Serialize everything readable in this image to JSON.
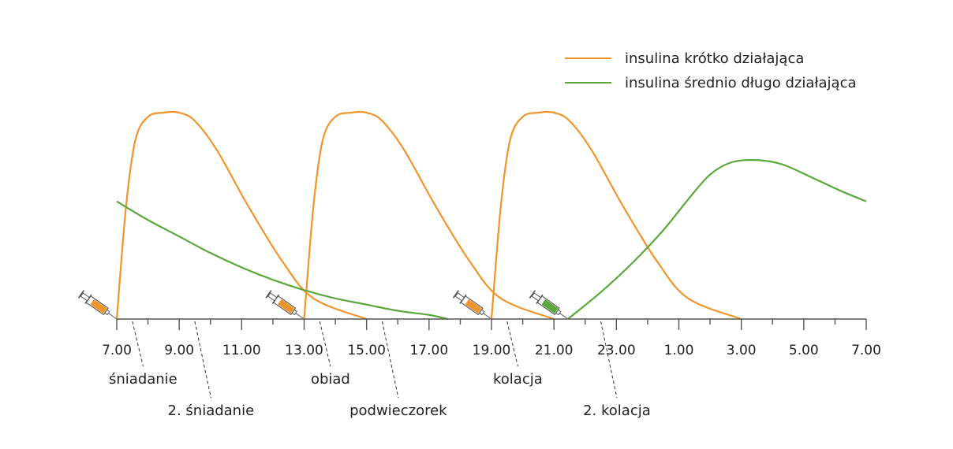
{
  "chart_data": {
    "type": "line",
    "title": "",
    "xlabel": "",
    "ylabel": "",
    "x_unit": "hour of day (continuous, 7.00 to next day 7.00)",
    "xlim": [
      7,
      31
    ],
    "ylim": [
      0,
      1
    ],
    "grid": false,
    "legend_position": "top-right",
    "colors": {
      "short": "#f0952b",
      "intermediate": "#5aa83c",
      "axis": "#555555"
    },
    "tick_labels": [
      {
        "x": 7,
        "label": "7.00"
      },
      {
        "x": 9,
        "label": "9.00"
      },
      {
        "x": 11,
        "label": "11.00"
      },
      {
        "x": 13,
        "label": "13.00"
      },
      {
        "x": 15,
        "label": "15.00"
      },
      {
        "x": 17,
        "label": "17.00"
      },
      {
        "x": 19,
        "label": "19.00"
      },
      {
        "x": 21,
        "label": "21.00"
      },
      {
        "x": 23,
        "label": "23.00"
      },
      {
        "x": 25,
        "label": "1.00"
      },
      {
        "x": 27,
        "label": "3.00"
      },
      {
        "x": 29,
        "label": "5.00"
      },
      {
        "x": 31,
        "label": "7.00"
      }
    ],
    "minor_ticks": [
      8,
      10,
      12,
      14,
      16,
      18,
      20,
      22,
      24,
      26,
      28,
      30
    ],
    "legend": [
      {
        "name": "insulina krótko działająca",
        "color": "#f0952b"
      },
      {
        "name": "insulina średnio długo działająca",
        "color": "#5aa83c"
      }
    ],
    "series": [
      {
        "name": "insulina krótko działająca",
        "color": "#f0952b",
        "points": [
          [
            7,
            0
          ],
          [
            7.3,
            0.55
          ],
          [
            7.6,
            0.87
          ],
          [
            8.0,
            0.98
          ],
          [
            8.5,
            1.0
          ],
          [
            9.0,
            1.0
          ],
          [
            9.5,
            0.96
          ],
          [
            10.2,
            0.82
          ],
          [
            11.2,
            0.55
          ],
          [
            12.3,
            0.28
          ],
          [
            13.3,
            0.1
          ],
          [
            15,
            0
          ]
        ]
      },
      {
        "name": "insulina krótko działająca",
        "color": "#f0952b",
        "points": [
          [
            13,
            0
          ],
          [
            13.3,
            0.55
          ],
          [
            13.6,
            0.87
          ],
          [
            14.0,
            0.98
          ],
          [
            14.5,
            1.0
          ],
          [
            15.0,
            1.0
          ],
          [
            15.5,
            0.96
          ],
          [
            16.2,
            0.82
          ],
          [
            17.2,
            0.55
          ],
          [
            18.3,
            0.28
          ],
          [
            19.3,
            0.1
          ],
          [
            21,
            0
          ]
        ]
      },
      {
        "name": "insulina krótko działająca",
        "color": "#f0952b",
        "points": [
          [
            19,
            0
          ],
          [
            19.3,
            0.55
          ],
          [
            19.6,
            0.87
          ],
          [
            20.0,
            0.98
          ],
          [
            20.5,
            1.0
          ],
          [
            21.0,
            1.0
          ],
          [
            21.5,
            0.96
          ],
          [
            22.2,
            0.82
          ],
          [
            23.2,
            0.55
          ],
          [
            24.3,
            0.28
          ],
          [
            25.3,
            0.1
          ],
          [
            27,
            0
          ]
        ]
      },
      {
        "name": "insulina średnio długo działająca",
        "color": "#5aa83c",
        "points": [
          [
            7,
            0.57
          ],
          [
            8,
            0.48
          ],
          [
            9,
            0.4
          ],
          [
            10,
            0.32
          ],
          [
            11,
            0.25
          ],
          [
            12,
            0.19
          ],
          [
            13,
            0.14
          ],
          [
            14,
            0.1
          ],
          [
            15,
            0.07
          ],
          [
            16,
            0.04
          ],
          [
            17,
            0.02
          ],
          [
            17.6,
            0.0
          ]
        ]
      },
      {
        "name": "insulina średnio długo działająca",
        "color": "#5aa83c",
        "points": [
          [
            21.45,
            0
          ],
          [
            22.5,
            0.13
          ],
          [
            23.5,
            0.27
          ],
          [
            24.5,
            0.43
          ],
          [
            25.3,
            0.58
          ],
          [
            26.0,
            0.7
          ],
          [
            26.7,
            0.76
          ],
          [
            27.5,
            0.77
          ],
          [
            28.3,
            0.75
          ],
          [
            29.2,
            0.69
          ],
          [
            30.2,
            0.62
          ],
          [
            31,
            0.57
          ]
        ]
      }
    ],
    "injections": [
      {
        "x": 7,
        "type": "short",
        "color": "#f0952b"
      },
      {
        "x": 13,
        "type": "short",
        "color": "#f0952b"
      },
      {
        "x": 19,
        "type": "short",
        "color": "#f0952b"
      },
      {
        "x": 21.45,
        "type": "intermediate",
        "color": "#5aa83c"
      }
    ],
    "annotations": [
      {
        "x": 7.5,
        "label": "śniadanie",
        "row": 1
      },
      {
        "x": 9.5,
        "label": "2. śniadanie",
        "row": 2
      },
      {
        "x": 13.5,
        "label": "obiad",
        "row": 1
      },
      {
        "x": 15.5,
        "label": "podwieczorek",
        "row": 2
      },
      {
        "x": 19.5,
        "label": "kolacja",
        "row": 1
      },
      {
        "x": 22.5,
        "label": "2. kolacja",
        "row": 2
      }
    ]
  }
}
